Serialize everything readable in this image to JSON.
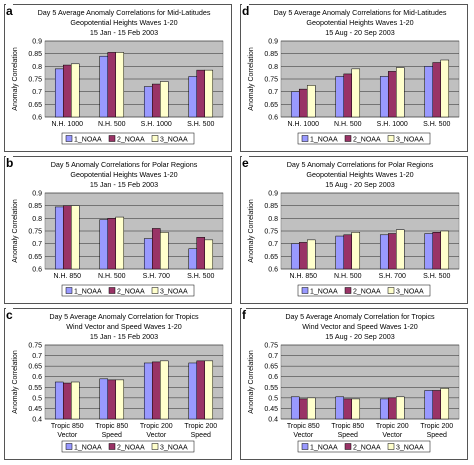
{
  "colors": {
    "1_NOAA": "#9999ff",
    "2_NOAA": "#993366",
    "3_NOAA": "#ffffcc",
    "plot_bg": "#c0c0c0"
  },
  "chart_data": [
    {
      "panel": "a",
      "type": "bar",
      "title": [
        "Day 5 Average Anomaly Correlations for Mid-Latitudes",
        "Geopotential Heights Waves 1-20",
        "15 Jan - 15 Feb 2003"
      ],
      "ylabel": "Anomaly Correlation",
      "ylim": [
        0.6,
        0.9
      ],
      "yticks": [
        0.6,
        0.65,
        0.7,
        0.75,
        0.8,
        0.85,
        0.9
      ],
      "categories": [
        [
          "N.H. 1000"
        ],
        [
          "N.H. 500"
        ],
        [
          "S.H. 1000"
        ],
        [
          "S.H. 500"
        ]
      ],
      "series": [
        {
          "name": "1_NOAA",
          "values": [
            0.79,
            0.84,
            0.72,
            0.76
          ]
        },
        {
          "name": "2_NOAA",
          "values": [
            0.805,
            0.855,
            0.73,
            0.785
          ]
        },
        {
          "name": "3_NOAA",
          "values": [
            0.81,
            0.855,
            0.74,
            0.785
          ]
        }
      ]
    },
    {
      "panel": "d",
      "type": "bar",
      "title": [
        "Day 5 Average Anomaly Correlations for Mid-Latitudes",
        "Geopotential Heights Waves 1-20",
        "15 Aug - 20 Sep 2003"
      ],
      "ylabel": "Anomaly Correlation",
      "ylim": [
        0.6,
        0.9
      ],
      "yticks": [
        0.6,
        0.65,
        0.7,
        0.75,
        0.8,
        0.85,
        0.9
      ],
      "categories": [
        [
          "N.H. 1000"
        ],
        [
          "N.H. 500"
        ],
        [
          "S.H. 1000"
        ],
        [
          "S.H. 500"
        ]
      ],
      "series": [
        {
          "name": "1_NOAA",
          "values": [
            0.7,
            0.76,
            0.76,
            0.8
          ]
        },
        {
          "name": "2_NOAA",
          "values": [
            0.71,
            0.77,
            0.78,
            0.815
          ]
        },
        {
          "name": "3_NOAA",
          "values": [
            0.725,
            0.79,
            0.795,
            0.825
          ]
        }
      ]
    },
    {
      "panel": "b",
      "type": "bar",
      "title": [
        "Day 5 Anomaly Correlations for Polar Regions",
        "Geopotential Heights Waves 1-20",
        "15 Jan - 15 Feb 2003"
      ],
      "ylabel": "Anomaly Correlation",
      "ylim": [
        0.6,
        0.9
      ],
      "yticks": [
        0.6,
        0.65,
        0.7,
        0.75,
        0.8,
        0.85,
        0.9
      ],
      "categories": [
        [
          "N.H. 850"
        ],
        [
          "N.H. 500"
        ],
        [
          "S.H. 700"
        ],
        [
          "S.H. 500"
        ]
      ],
      "series": [
        {
          "name": "1_NOAA",
          "values": [
            0.845,
            0.795,
            0.72,
            0.68
          ]
        },
        {
          "name": "2_NOAA",
          "values": [
            0.85,
            0.8,
            0.76,
            0.725
          ]
        },
        {
          "name": "3_NOAA",
          "values": [
            0.85,
            0.805,
            0.745,
            0.715
          ]
        }
      ]
    },
    {
      "panel": "e",
      "type": "bar",
      "title": [
        "Day 5 Anomaly Correlations for Polar Regions",
        "Geopotential Heights Waves 1-20",
        "15 Aug - 20 Sep 2003"
      ],
      "ylabel": "Anomaly Correlation",
      "ylim": [
        0.6,
        0.9
      ],
      "yticks": [
        0.6,
        0.65,
        0.7,
        0.75,
        0.8,
        0.85,
        0.9
      ],
      "categories": [
        [
          "N.H. 850"
        ],
        [
          "N.H. 500"
        ],
        [
          "S.H. 700"
        ],
        [
          "S.H. 500"
        ]
      ],
      "series": [
        {
          "name": "1_NOAA",
          "values": [
            0.7,
            0.73,
            0.735,
            0.74
          ]
        },
        {
          "name": "2_NOAA",
          "values": [
            0.705,
            0.735,
            0.74,
            0.745
          ]
        },
        {
          "name": "3_NOAA",
          "values": [
            0.715,
            0.745,
            0.755,
            0.75
          ]
        }
      ]
    },
    {
      "panel": "c",
      "type": "bar",
      "title": [
        "Day 5 Average Anomaly Correlation for Tropics",
        "Wind Vector and Speed Waves 1-20",
        "15 Jan - 15 Feb 2003"
      ],
      "ylabel": "Anomaly Correlation",
      "ylim": [
        0.4,
        0.75
      ],
      "yticks": [
        0.4,
        0.45,
        0.5,
        0.55,
        0.6,
        0.65,
        0.7,
        0.75
      ],
      "categories": [
        [
          "Tropic 850",
          "Vector"
        ],
        [
          "Tropic 850",
          "Speed"
        ],
        [
          "Tropic 200",
          "Vector"
        ],
        [
          "Tropic 200",
          "Speed"
        ]
      ],
      "series": [
        {
          "name": "1_NOAA",
          "values": [
            0.575,
            0.59,
            0.665,
            0.665
          ]
        },
        {
          "name": "2_NOAA",
          "values": [
            0.57,
            0.585,
            0.67,
            0.675
          ]
        },
        {
          "name": "3_NOAA",
          "values": [
            0.575,
            0.585,
            0.675,
            0.675
          ]
        }
      ]
    },
    {
      "panel": "f",
      "type": "bar",
      "title": [
        "Day 5 Average Anomaly Correlation for Tropics",
        "Wind Vector and Speed Waves 1-20",
        "15 Aug - 20 Sep 2003"
      ],
      "ylabel": "Anomaly Correlation",
      "ylim": [
        0.4,
        0.75
      ],
      "yticks": [
        0.4,
        0.45,
        0.5,
        0.55,
        0.6,
        0.65,
        0.7,
        0.75
      ],
      "categories": [
        [
          "Tropic 850",
          "Vector"
        ],
        [
          "Tropic 850",
          "Speed"
        ],
        [
          "Tropic 200",
          "Vector"
        ],
        [
          "Tropic 200",
          "Speed"
        ]
      ],
      "series": [
        {
          "name": "1_NOAA",
          "values": [
            0.505,
            0.505,
            0.495,
            0.535
          ]
        },
        {
          "name": "2_NOAA",
          "values": [
            0.495,
            0.495,
            0.5,
            0.535
          ]
        },
        {
          "name": "3_NOAA",
          "values": [
            0.5,
            0.495,
            0.505,
            0.545
          ]
        }
      ]
    }
  ]
}
